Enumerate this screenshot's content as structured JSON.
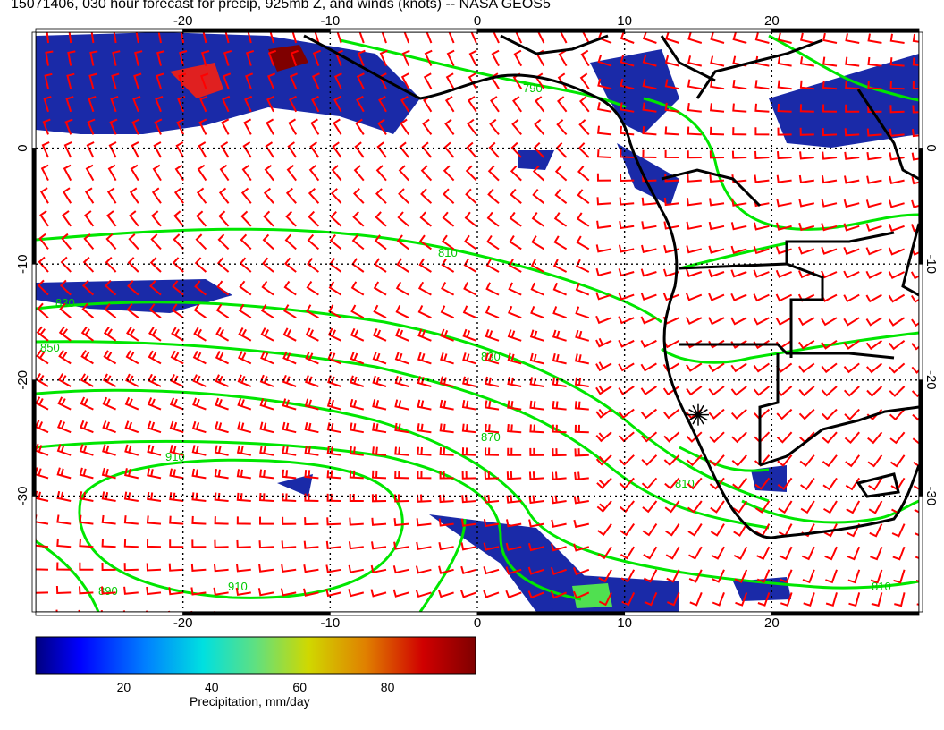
{
  "title": "15071406, 030 hour forecast for precip, 925mb Z, and winds (knots) -- NASA GEOS5",
  "map": {
    "lon_ticks": [
      -20,
      -10,
      0,
      10,
      20
    ],
    "lat_ticks": [
      0,
      -10,
      -20,
      -30
    ],
    "lon_range": [
      -30,
      30
    ],
    "lat_range": [
      -40,
      10
    ],
    "grid": true,
    "station_marker": {
      "lon": 15,
      "lat": -23
    },
    "contour_labels": [
      "790",
      "810",
      "830",
      "850",
      "870",
      "890",
      "910"
    ],
    "colors": {
      "contour": "#00e600",
      "wind_barb": "#ff0000",
      "coast": "#000000",
      "grid": "#000000",
      "land_mask_contour": "#00e600"
    }
  },
  "colorbar": {
    "label": "Precipitation, mm/day",
    "ticks": [
      20,
      40,
      60,
      80
    ],
    "range": [
      0,
      100
    ],
    "colors": [
      "#00007f",
      "#0000ff",
      "#0050ff",
      "#00a0ff",
      "#00e0e0",
      "#40e0a0",
      "#90e050",
      "#d0e000",
      "#e0a000",
      "#e05000",
      "#d00000",
      "#7f0000"
    ]
  }
}
